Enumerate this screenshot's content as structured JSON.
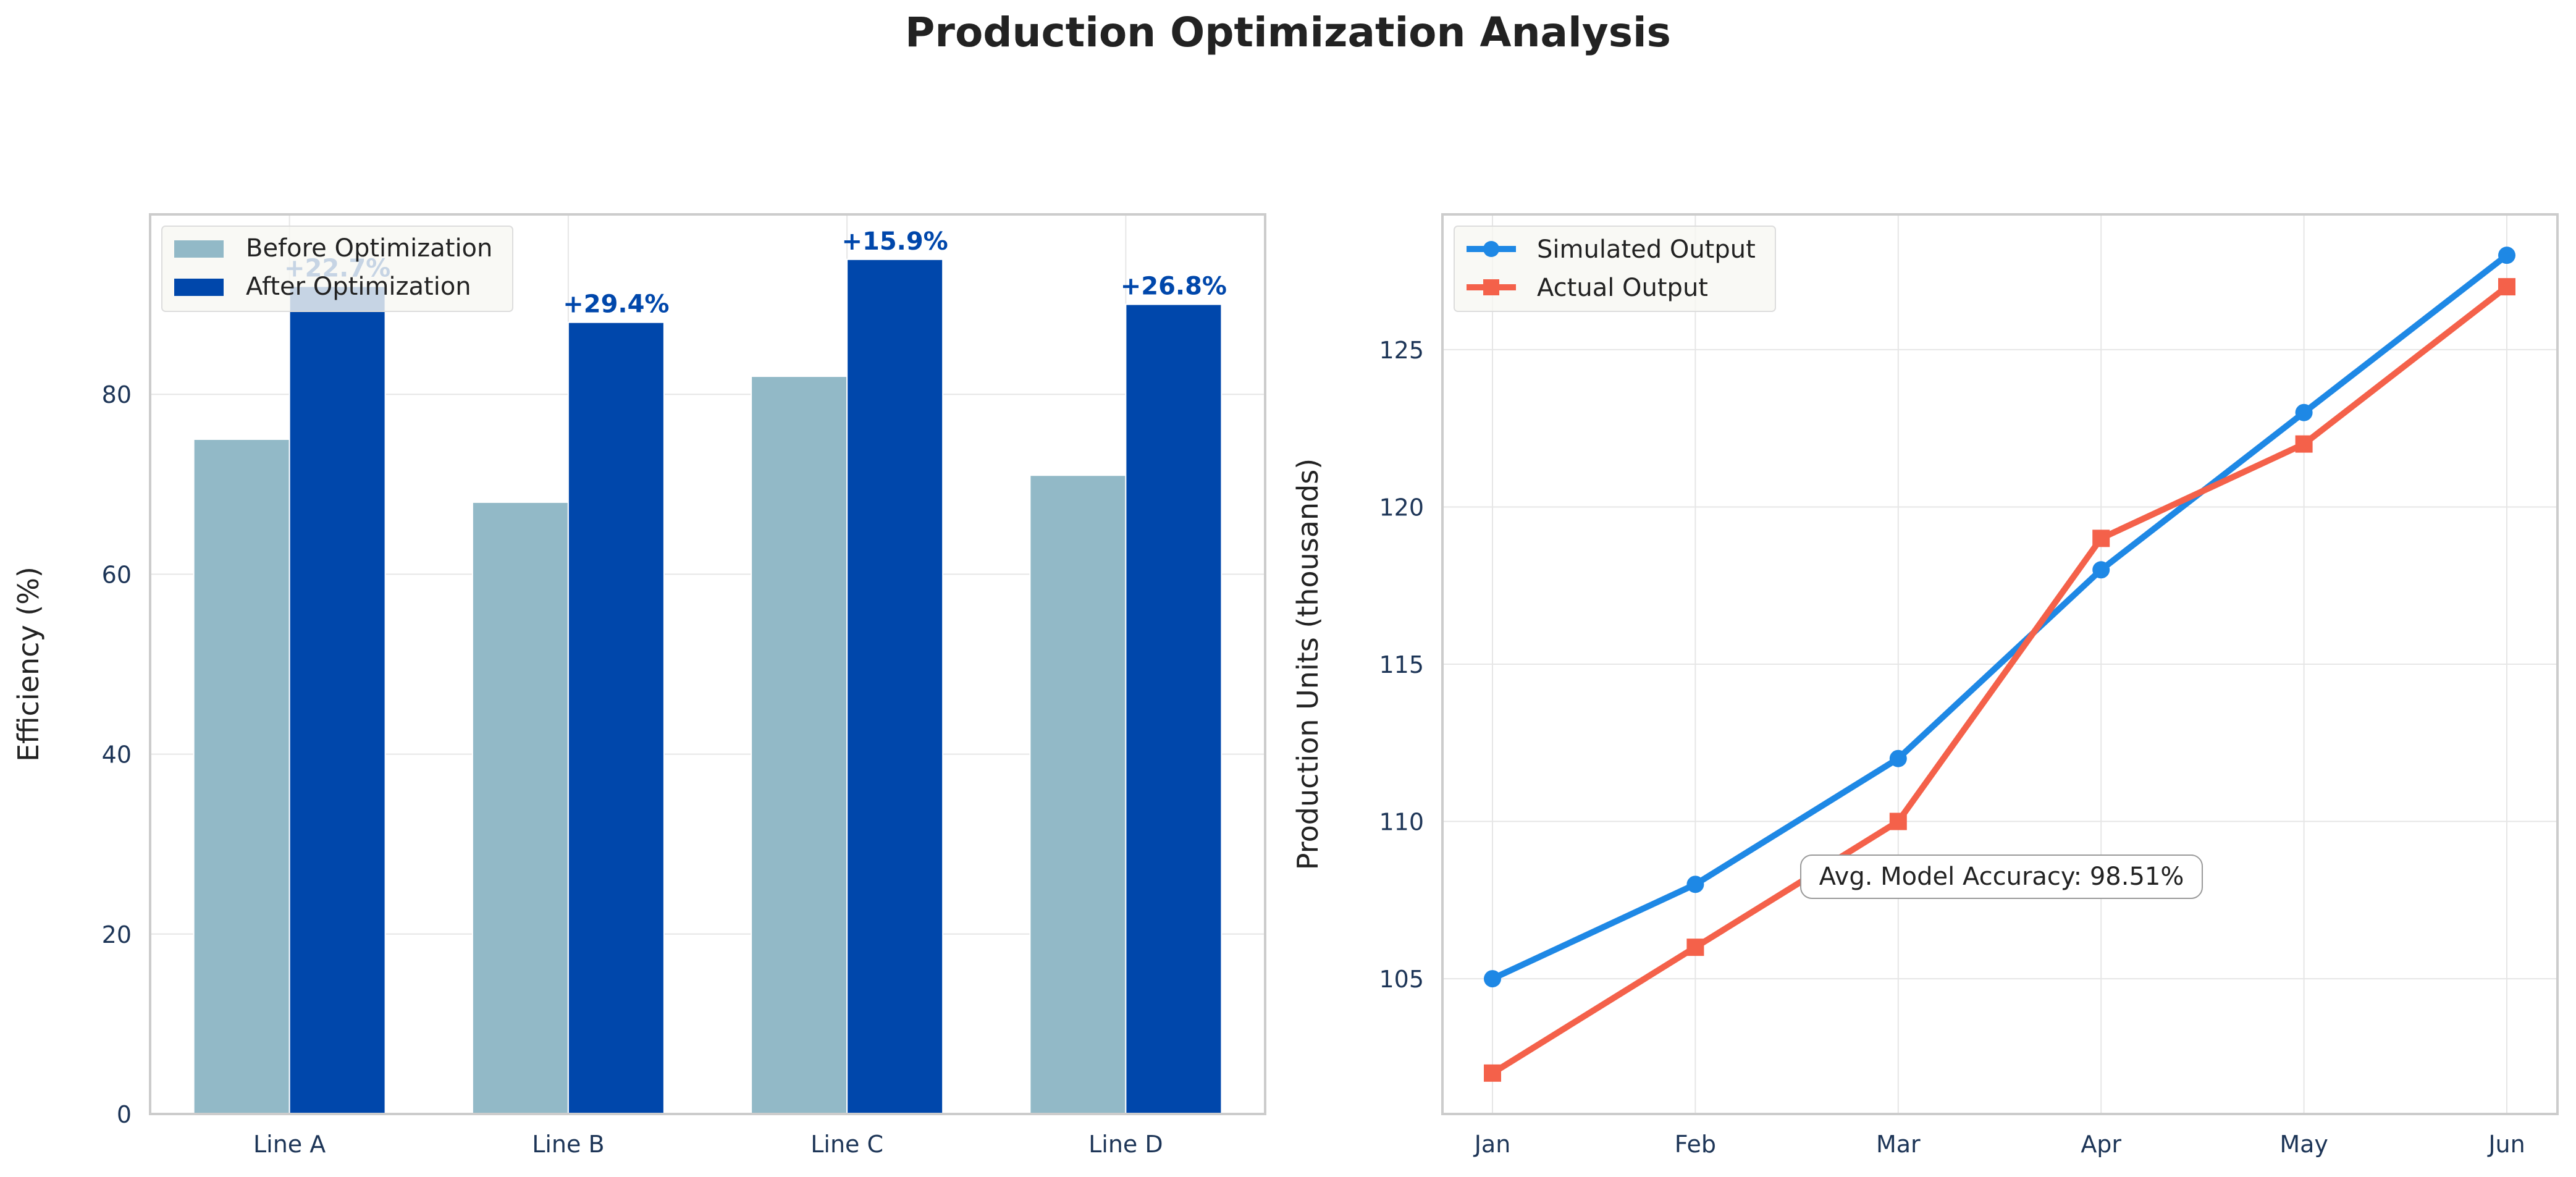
{
  "figure": {
    "title": "Production Optimization Analysis"
  },
  "colors": {
    "before": "#92b9c7",
    "after": "#0047ab",
    "simulated": "#1e88e5",
    "actual": "#f4614a",
    "axis_text": "#1d3557",
    "grid": "#e6e6e6",
    "frame": "#cccccc"
  },
  "chart_data": [
    {
      "type": "bar",
      "title": "",
      "xlabel": "",
      "ylabel": "Efficiency (%)",
      "categories": [
        "Line A",
        "Line B",
        "Line C",
        "Line D"
      ],
      "series": [
        {
          "name": "Before Optimization",
          "values": [
            75,
            68,
            82,
            71
          ]
        },
        {
          "name": "After Optimization",
          "values": [
            92,
            88,
            95,
            90
          ]
        }
      ],
      "annotations": [
        "+22.7%",
        "+29.4%",
        "+15.9%",
        "+26.8%"
      ],
      "ylim": [
        0,
        100
      ],
      "yticks": [
        0,
        20,
        40,
        60,
        80
      ],
      "legend": "upper-left",
      "grid": true
    },
    {
      "type": "line",
      "title": "",
      "xlabel": "",
      "ylabel": "Production Units (thousands)",
      "x": [
        "Jan",
        "Feb",
        "Mar",
        "Apr",
        "May",
        "Jun"
      ],
      "series": [
        {
          "name": "Simulated Output",
          "values": [
            105,
            108,
            112,
            118,
            123,
            128
          ],
          "marker": "circle"
        },
        {
          "name": "Actual Output",
          "values": [
            102,
            106,
            110,
            119,
            122,
            127
          ],
          "marker": "square"
        }
      ],
      "ylim": [
        100.7,
        129.3
      ],
      "yticks": [
        105,
        110,
        115,
        120,
        125
      ],
      "annotation": "Avg. Model Accuracy: 98.51%",
      "legend": "upper-left",
      "grid": true
    }
  ]
}
